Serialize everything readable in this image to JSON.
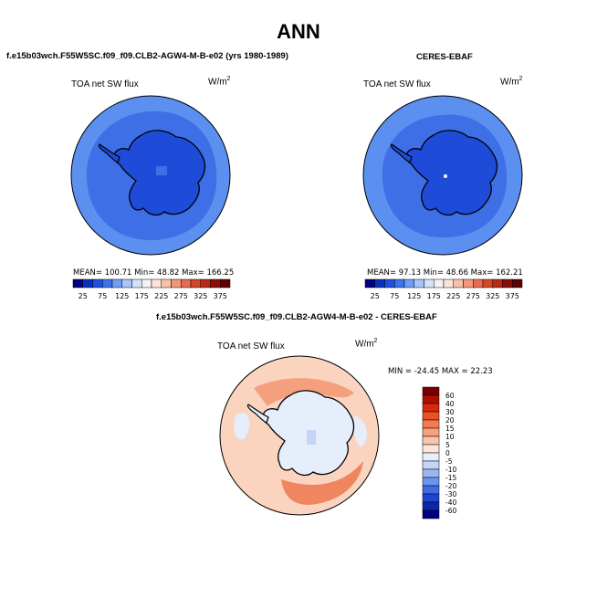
{
  "figure": {
    "title": "ANN",
    "panels": [
      {
        "id": "model",
        "header": "f.e15b03wch.F55W5SC.f09_f09.CLB2-AGW4-M-B-e02 (yrs 1980-1989)",
        "variable": "TOA net SW flux",
        "units_base": "W/m",
        "units_exp": "2",
        "stats": "MEAN= 100.71   Min= 48.82   Max= 166.25"
      },
      {
        "id": "obs",
        "header": "CERES-EBAF",
        "variable": "TOA net SW flux",
        "units_base": "W/m",
        "units_exp": "2",
        "stats": "MEAN= 97.13   Min= 48.66   Max= 162.21"
      },
      {
        "id": "diff",
        "header": "f.e15b03wch.F55W5SC.f09_f09.CLB2-AGW4-M-B-e02 - CERES-EBAF",
        "variable": "TOA net SW flux",
        "units_base": "W/m",
        "units_exp": "2",
        "stats": "MIN = -24.45 MAX =  22.23"
      }
    ],
    "abs_colorbar": {
      "labels": [
        "25",
        "75",
        "125",
        "175",
        "225",
        "275",
        "325",
        "375"
      ],
      "colors": [
        "#000080",
        "#0a2fbf",
        "#1f4fe0",
        "#3d72f0",
        "#6f9df5",
        "#a6c4f7",
        "#d4e2f7",
        "#f3f3f3",
        "#fde4d8",
        "#f9c0a8",
        "#f2977a",
        "#e86c4e",
        "#d74626",
        "#b92a12",
        "#8b0d05",
        "#5e0000"
      ]
    },
    "diff_colorbar": {
      "labels": [
        "60",
        "40",
        "30",
        "20",
        "15",
        "10",
        "5",
        "0",
        "-5",
        "-10",
        "-15",
        "-20",
        "-30",
        "-40",
        "-60"
      ],
      "colors": [
        "#7a0000",
        "#b30f00",
        "#d82a0b",
        "#ec5026",
        "#f57a4c",
        "#f9a07c",
        "#fbc5ab",
        "#fde6d8",
        "#e6eefb",
        "#c4d5f6",
        "#9bb7f1",
        "#6f94ec",
        "#3f6be3",
        "#1e45d2",
        "#0a26ad",
        "#000080"
      ]
    },
    "map_colors": {
      "ocean_outer": "#5b8ff0",
      "ocean_mid": "#3f6fe6",
      "ice": "#1f4bd9",
      "coast": "#000000",
      "diff_ocean": "#f9c4aa",
      "diff_ocean_warm": "#f4a07e",
      "diff_ice": "#e6eefb"
    }
  }
}
